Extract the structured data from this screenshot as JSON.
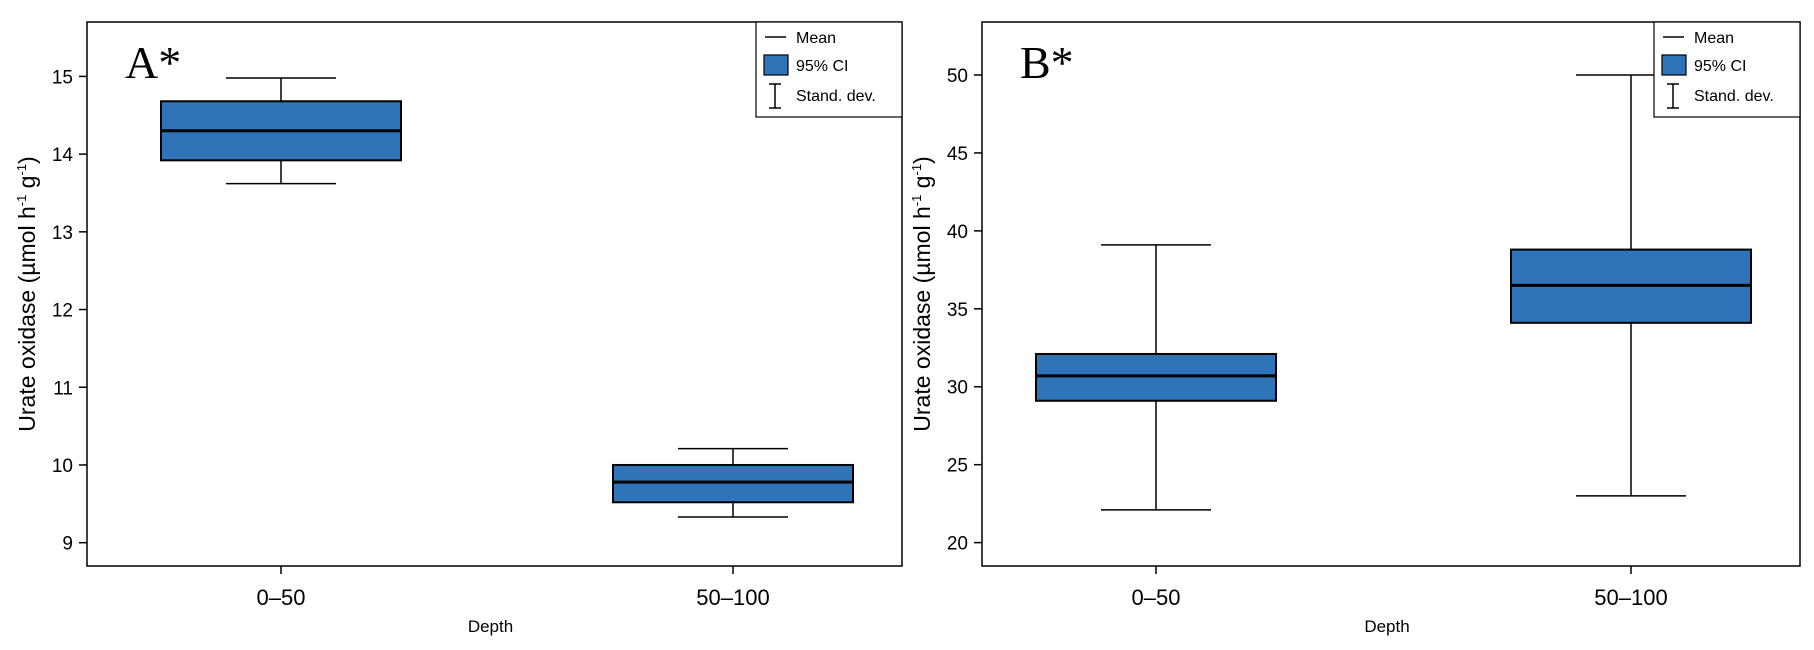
{
  "chart_data": [
    {
      "type": "box",
      "panel_label": "A*",
      "xlabel": "Depth",
      "ylabel": "Urate oxidase (µmol h",
      "ylabel_sup1": "-1",
      "ylabel_mid": " g",
      "ylabel_sup2": "-1",
      "ylabel_end": ")",
      "ylim": [
        8.7,
        15.7
      ],
      "yticks": [
        9,
        10,
        11,
        12,
        13,
        14,
        15
      ],
      "categories": [
        "0–50",
        "50–100"
      ],
      "series": [
        {
          "name": "0–50",
          "mean": 14.3,
          "ci_low": 13.92,
          "ci_high": 14.68,
          "sd_low": 13.62,
          "sd_high": 14.98
        },
        {
          "name": "50–100",
          "mean": 9.78,
          "ci_low": 9.52,
          "ci_high": 10.0,
          "sd_low": 9.33,
          "sd_high": 10.21
        }
      ],
      "legend": {
        "mean": "Mean",
        "ci": "95% CI",
        "sd": "Stand. dev."
      }
    },
    {
      "type": "box",
      "panel_label": "B*",
      "xlabel": "Depth",
      "ylabel": "Urate oxidase (µmol h",
      "ylabel_sup1": "-1",
      "ylabel_mid": " g",
      "ylabel_sup2": "-1",
      "ylabel_end": ")",
      "ylim": [
        18.5,
        53.4
      ],
      "yticks": [
        20,
        25,
        30,
        35,
        40,
        45,
        50
      ],
      "categories": [
        "0–50",
        "50–100"
      ],
      "series": [
        {
          "name": "0–50",
          "mean": 30.7,
          "ci_low": 29.1,
          "ci_high": 32.1,
          "sd_low": 22.1,
          "sd_high": 39.1
        },
        {
          "name": "50–100",
          "mean": 36.5,
          "ci_low": 34.1,
          "ci_high": 38.8,
          "sd_low": 23.0,
          "sd_high": 50.0
        }
      ],
      "legend": {
        "mean": "Mean",
        "ci": "95% CI",
        "sd": "Stand. dev."
      }
    }
  ],
  "colors": {
    "box_fill": "#2f73b8",
    "line": "#000000"
  }
}
